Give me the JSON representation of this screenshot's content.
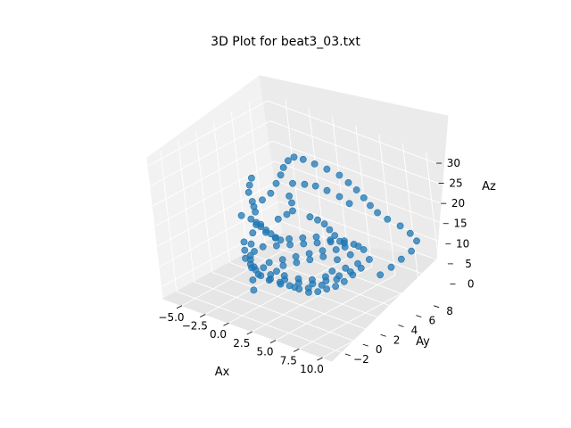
{
  "chart_data": {
    "type": "scatter",
    "projection": "3d",
    "title": "3D Plot for beat3_03.txt",
    "xlabel": "Ax",
    "ylabel": "Ay",
    "zlabel": "Az",
    "xlim": [
      -7,
      11
    ],
    "ylim": [
      -3.5,
      10
    ],
    "zlim": [
      -3,
      32
    ],
    "xticks": [
      -5.0,
      -2.5,
      0.0,
      2.5,
      5.0,
      7.5,
      10.0
    ],
    "xtick_labels": [
      "−5.0",
      "−2.5",
      "0.0",
      "2.5",
      "5.0",
      "7.5",
      "10.0"
    ],
    "yticks": [
      -2,
      0,
      2,
      4,
      6,
      8
    ],
    "ytick_labels": [
      "−2",
      "0",
      "2",
      "4",
      "6",
      "8"
    ],
    "zticks": [
      0,
      5,
      10,
      15,
      20,
      25,
      30
    ],
    "ztick_labels": [
      "0",
      "5",
      "10",
      "15",
      "20",
      "25",
      "30"
    ],
    "grid": true,
    "marker_color": "#1f77b4",
    "series": [
      {
        "points": [
          [
            1.5,
            4.0,
            30.5
          ],
          [
            2.5,
            4.0,
            30.8
          ],
          [
            3.5,
            4.2,
            30.3
          ],
          [
            4.5,
            4.5,
            29.5
          ],
          [
            5.5,
            4.8,
            28.5
          ],
          [
            6.2,
            5.0,
            27.0
          ],
          [
            6.8,
            5.2,
            25.5
          ],
          [
            7.2,
            5.5,
            23.5
          ],
          [
            7.5,
            5.8,
            21.5
          ],
          [
            7.8,
            6.2,
            19.5
          ],
          [
            8.2,
            6.8,
            17.5
          ],
          [
            8.8,
            7.5,
            15.5
          ],
          [
            9.3,
            8.0,
            13.5
          ],
          [
            9.6,
            8.3,
            11.5
          ],
          [
            9.2,
            8.0,
            9.0
          ],
          [
            8.5,
            7.5,
            7.0
          ],
          [
            7.8,
            7.0,
            5.0
          ],
          [
            7.0,
            6.5,
            3.0
          ],
          [
            0.8,
            4.0,
            29.0
          ],
          [
            0.3,
            3.9,
            27.0
          ],
          [
            0.0,
            3.8,
            25.0
          ],
          [
            -0.3,
            3.5,
            23.0
          ],
          [
            -0.5,
            3.0,
            21.0
          ],
          [
            -1.0,
            2.5,
            19.5
          ],
          [
            -1.5,
            2.0,
            18.0
          ],
          [
            -3.5,
            4.0,
            21.0
          ],
          [
            -3.8,
            4.0,
            19.0
          ],
          [
            -4.0,
            4.0,
            17.0
          ],
          [
            -3.7,
            4.0,
            15.0
          ],
          [
            -3.3,
            3.8,
            13.0
          ],
          [
            -3.0,
            3.5,
            11.0
          ],
          [
            -3.0,
            3.0,
            9.0
          ],
          [
            -2.8,
            2.5,
            7.0
          ],
          [
            -2.5,
            2.0,
            5.0
          ],
          [
            -2.0,
            1.5,
            3.0
          ],
          [
            -1.5,
            1.0,
            1.0
          ],
          [
            -1.0,
            0.5,
            -0.5
          ],
          [
            -1.0,
            2.0,
            13.5
          ],
          [
            -0.5,
            2.0,
            12.5
          ],
          [
            0.5,
            2.0,
            12.0
          ],
          [
            1.5,
            2.5,
            12.0
          ],
          [
            2.5,
            3.0,
            12.5
          ],
          [
            3.5,
            3.5,
            13.0
          ],
          [
            4.5,
            4.0,
            12.5
          ],
          [
            5.5,
            4.5,
            12.0
          ],
          [
            6.5,
            5.0,
            11.5
          ],
          [
            0.5,
            4.5,
            22.5
          ],
          [
            1.5,
            4.8,
            22.8
          ],
          [
            2.5,
            5.0,
            23.0
          ],
          [
            3.5,
            5.2,
            22.5
          ],
          [
            4.5,
            5.5,
            21.5
          ],
          [
            5.2,
            5.8,
            20.0
          ],
          [
            0.0,
            3.0,
            15.0
          ],
          [
            0.5,
            3.5,
            16.0
          ],
          [
            1.2,
            3.5,
            17.5
          ],
          [
            1.2,
            3.5,
            19.5
          ],
          [
            1.0,
            3.5,
            21.0
          ],
          [
            -2.0,
            1.0,
            10.0
          ],
          [
            -1.5,
            0.5,
            9.0
          ],
          [
            -1.0,
            0.0,
            8.0
          ],
          [
            -0.5,
            0.0,
            7.0
          ],
          [
            0.0,
            0.0,
            6.0
          ],
          [
            0.5,
            0.0,
            5.0
          ],
          [
            1.0,
            0.5,
            4.0
          ],
          [
            1.5,
            1.0,
            3.0
          ],
          [
            2.0,
            1.5,
            2.0
          ],
          [
            2.5,
            2.0,
            1.0
          ],
          [
            3.0,
            2.5,
            0.0
          ],
          [
            3.5,
            3.0,
            0.0
          ],
          [
            4.0,
            3.5,
            0.5
          ],
          [
            4.5,
            4.0,
            1.0
          ],
          [
            5.0,
            4.5,
            2.0
          ],
          [
            5.5,
            5.0,
            3.5
          ],
          [
            6.0,
            5.5,
            5.0
          ],
          [
            6.5,
            6.0,
            7.0
          ],
          [
            6.0,
            6.0,
            9.0
          ],
          [
            5.5,
            5.5,
            10.5
          ],
          [
            5.0,
            5.0,
            11.5
          ],
          [
            4.0,
            4.5,
            11.0
          ],
          [
            3.0,
            4.0,
            10.5
          ],
          [
            2.0,
            3.5,
            10.0
          ],
          [
            1.0,
            3.0,
            9.5
          ],
          [
            0.0,
            2.5,
            9.0
          ],
          [
            -1.0,
            2.0,
            8.5
          ],
          [
            -1.5,
            1.5,
            7.5
          ],
          [
            -1.5,
            1.0,
            6.0
          ],
          [
            -1.2,
            1.0,
            4.5
          ],
          [
            -0.8,
            1.0,
            3.0
          ],
          [
            -0.2,
            1.5,
            1.5
          ],
          [
            0.5,
            2.0,
            0.5
          ],
          [
            1.5,
            2.5,
            0.0
          ],
          [
            2.5,
            3.0,
            0.0
          ],
          [
            3.5,
            3.5,
            1.0
          ],
          [
            4.5,
            4.2,
            2.5
          ],
          [
            5.5,
            4.8,
            4.5
          ],
          [
            6.0,
            5.2,
            6.5
          ],
          [
            5.5,
            5.0,
            8.5
          ],
          [
            4.5,
            4.5,
            9.5
          ],
          [
            3.5,
            4.0,
            9.0
          ],
          [
            2.5,
            3.5,
            8.0
          ],
          [
            1.5,
            3.0,
            7.0
          ],
          [
            0.5,
            2.5,
            6.0
          ],
          [
            -0.5,
            2.0,
            5.0
          ],
          [
            -1.0,
            1.8,
            3.5
          ],
          [
            -0.5,
            2.0,
            2.0
          ],
          [
            0.5,
            2.5,
            1.0
          ],
          [
            1.5,
            3.0,
            0.5
          ],
          [
            2.5,
            3.5,
            0.5
          ],
          [
            3.5,
            4.0,
            1.5
          ],
          [
            4.5,
            4.5,
            3.0
          ],
          [
            5.0,
            4.8,
            5.0
          ],
          [
            4.5,
            4.5,
            7.0
          ],
          [
            3.5,
            4.0,
            7.5
          ],
          [
            2.5,
            3.5,
            6.5
          ],
          [
            1.5,
            3.0,
            5.5
          ],
          [
            0.5,
            2.5,
            4.5
          ],
          [
            0.0,
            2.2,
            3.0
          ],
          [
            0.5,
            2.5,
            2.0
          ],
          [
            1.5,
            3.0,
            1.5
          ],
          [
            2.5,
            3.5,
            1.5
          ],
          [
            3.5,
            4.0,
            2.5
          ],
          [
            4.0,
            4.3,
            4.0
          ],
          [
            -2.0,
            3.0,
            12.0
          ],
          [
            -1.5,
            3.0,
            11.0
          ],
          [
            -1.0,
            3.0,
            10.5
          ],
          [
            -0.5,
            3.0,
            10.0
          ],
          [
            0.0,
            3.0,
            9.8
          ],
          [
            3.0,
            5.0,
            14.0
          ],
          [
            3.5,
            5.0,
            13.0
          ],
          [
            4.0,
            5.0,
            12.0
          ],
          [
            4.5,
            5.0,
            11.0
          ],
          [
            5.0,
            5.0,
            10.0
          ],
          [
            -3.0,
            2.0,
            14.5
          ],
          [
            -2.5,
            2.5,
            13.5
          ],
          [
            -2.0,
            2.5,
            12.5
          ],
          [
            2.0,
            4.5,
            15.5
          ],
          [
            2.5,
            4.8,
            14.8
          ]
        ]
      }
    ]
  }
}
